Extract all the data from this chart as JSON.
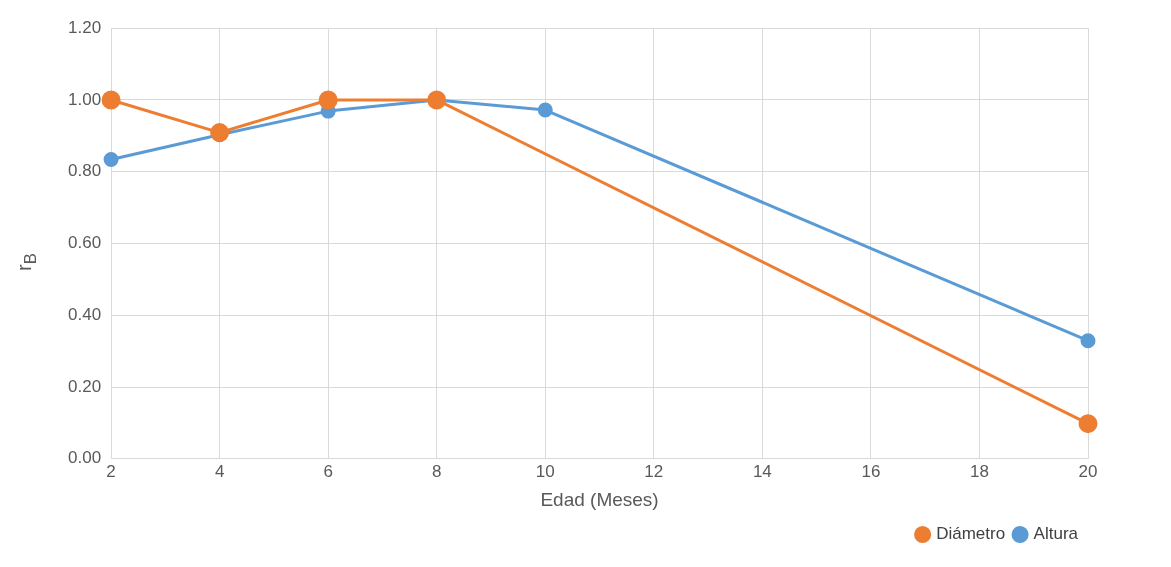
{
  "chart_data": {
    "type": "line",
    "xlabel": "Edad (Meses)",
    "ylabel": "r$_{B}$",
    "xlim": [
      2,
      20
    ],
    "xticks": [
      2,
      4,
      6,
      8,
      10,
      12,
      14,
      16,
      18,
      20
    ],
    "ylim": [
      0,
      1.2
    ],
    "yticks": [
      {
        "value": 0,
        "label": "0.00"
      },
      {
        "value": 0.2,
        "label": "0.20"
      },
      {
        "value": 0.4,
        "label": "0.40"
      },
      {
        "value": 0.6,
        "label": "0.60"
      },
      {
        "value": 0.8,
        "label": "0.80"
      },
      {
        "value": 1,
        "label": "1.00"
      },
      {
        "value": 1.2,
        "label": "1.20"
      }
    ],
    "grid": true,
    "legend": "bottom right",
    "marker": "circle",
    "line_style": "solid",
    "series": [
      {
        "name": "Altura",
        "color": "#5b9bd5",
        "x": [
          2,
          4,
          6,
          8,
          10,
          20
        ],
        "values": [
          0.834,
          0.903,
          0.969,
          1.0,
          0.972,
          0.329
        ]
      },
      {
        "name": "Diámetro",
        "color": "#ed7d31",
        "x": [
          2,
          4,
          6,
          8,
          20
        ],
        "values": [
          1.0,
          0.909,
          1.0,
          1.0,
          0.098
        ]
      }
    ]
  }
}
